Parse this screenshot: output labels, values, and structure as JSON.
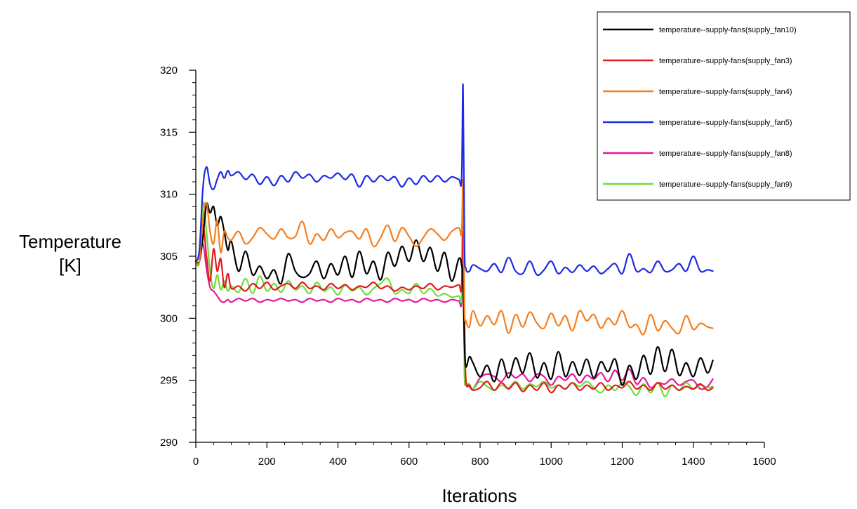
{
  "chart_data": {
    "type": "line",
    "xlabel": "Iterations",
    "ylabel_lines": [
      "Temperature",
      "[K]"
    ],
    "xlim": [
      0,
      1600
    ],
    "ylim": [
      290,
      320
    ],
    "x_ticks": [
      0,
      200,
      400,
      600,
      800,
      1000,
      1200,
      1400,
      1600
    ],
    "y_ticks": [
      290,
      295,
      300,
      305,
      310,
      315,
      320
    ],
    "grid": false,
    "legend_position": "top-right",
    "series": [
      {
        "name": "temperature--supply-fans(supply_fan10)",
        "color": "#000000",
        "x": [
          0,
          10,
          20,
          30,
          40,
          50,
          60,
          70,
          80,
          90,
          100,
          120,
          140,
          160,
          180,
          200,
          220,
          240,
          260,
          280,
          300,
          320,
          340,
          360,
          380,
          400,
          420,
          440,
          460,
          480,
          500,
          520,
          540,
          560,
          580,
          600,
          620,
          640,
          660,
          680,
          700,
          720,
          740,
          748,
          752,
          756,
          760,
          770,
          780,
          800,
          820,
          840,
          860,
          880,
          900,
          920,
          940,
          960,
          980,
          1000,
          1020,
          1040,
          1060,
          1080,
          1100,
          1120,
          1140,
          1160,
          1180,
          1200,
          1220,
          1240,
          1260,
          1280,
          1300,
          1320,
          1340,
          1360,
          1380,
          1400,
          1420,
          1440,
          1455
        ],
        "y": [
          304.6,
          304.6,
          306.5,
          309.2,
          308.5,
          309.0,
          307.5,
          308.2,
          307.0,
          305.5,
          306.2,
          303.8,
          305.4,
          303.5,
          304.2,
          303.2,
          303.9,
          302.8,
          305.2,
          303.8,
          303.3,
          303.6,
          304.6,
          303.2,
          304.4,
          303.5,
          305.0,
          303.3,
          305.4,
          303.6,
          304.6,
          303.1,
          305.3,
          304.2,
          305.8,
          304.6,
          306.3,
          304.6,
          305.7,
          303.8,
          305.3,
          303.0,
          304.8,
          304.3,
          303.0,
          298.0,
          296.1,
          296.9,
          296.4,
          295.3,
          296.2,
          294.9,
          296.7,
          295.2,
          296.8,
          295.6,
          297.2,
          295.2,
          296.4,
          295.1,
          297.3,
          295.3,
          296.5,
          295.4,
          296.7,
          295.2,
          296.5,
          295.7,
          296.7,
          294.6,
          296.2,
          295.1,
          297.0,
          295.5,
          297.7,
          295.7,
          297.5,
          295.4,
          296.4,
          295.3,
          296.8,
          295.6,
          296.6
        ]
      },
      {
        "name": "temperature--supply-fans(supply_fan3)",
        "color": "#e41a1c",
        "x": [
          0,
          10,
          20,
          30,
          40,
          50,
          60,
          70,
          80,
          90,
          100,
          120,
          140,
          160,
          180,
          200,
          220,
          240,
          260,
          280,
          300,
          320,
          340,
          360,
          380,
          400,
          420,
          440,
          460,
          480,
          500,
          520,
          540,
          560,
          580,
          600,
          620,
          640,
          660,
          680,
          700,
          720,
          740,
          748,
          752,
          756,
          760,
          770,
          780,
          800,
          820,
          840,
          860,
          880,
          900,
          920,
          940,
          960,
          980,
          1000,
          1020,
          1040,
          1060,
          1080,
          1100,
          1120,
          1140,
          1160,
          1180,
          1200,
          1220,
          1240,
          1260,
          1280,
          1300,
          1320,
          1340,
          1360,
          1380,
          1400,
          1420,
          1440,
          1455
        ],
        "y": [
          304.6,
          304.6,
          307.5,
          305.0,
          303.0,
          305.6,
          303.8,
          304.8,
          302.5,
          303.6,
          302.4,
          302.6,
          302.2,
          302.8,
          302.4,
          302.9,
          302.3,
          302.6,
          302.8,
          302.4,
          302.9,
          302.4,
          302.6,
          302.3,
          302.8,
          302.4,
          302.7,
          302.3,
          302.6,
          302.5,
          302.9,
          302.4,
          302.6,
          302.2,
          302.5,
          302.3,
          302.6,
          302.4,
          302.8,
          302.3,
          302.6,
          302.5,
          302.7,
          302.6,
          309.0,
          300.0,
          295.0,
          294.6,
          294.2,
          294.4,
          294.9,
          294.2,
          294.8,
          294.3,
          294.8,
          294.1,
          294.6,
          294.2,
          294.8,
          294.0,
          294.6,
          294.3,
          294.8,
          294.2,
          294.6,
          294.3,
          294.8,
          294.2,
          294.6,
          294.4,
          294.9,
          294.3,
          294.6,
          294.2,
          294.8,
          294.3,
          294.6,
          294.2,
          294.5,
          294.3,
          294.7,
          294.2,
          294.4
        ]
      },
      {
        "name": "temperature--supply-fans(supply_fan4)",
        "color": "#f47f20",
        "x": [
          0,
          10,
          20,
          30,
          40,
          50,
          60,
          70,
          80,
          90,
          100,
          120,
          140,
          160,
          180,
          200,
          220,
          240,
          260,
          280,
          300,
          320,
          340,
          360,
          380,
          400,
          420,
          440,
          460,
          480,
          500,
          520,
          540,
          560,
          580,
          600,
          620,
          640,
          660,
          680,
          700,
          720,
          740,
          748,
          752,
          756,
          760,
          770,
          780,
          800,
          820,
          840,
          860,
          880,
          900,
          920,
          940,
          960,
          980,
          1000,
          1020,
          1040,
          1060,
          1080,
          1100,
          1120,
          1140,
          1160,
          1180,
          1200,
          1220,
          1240,
          1260,
          1280,
          1300,
          1320,
          1340,
          1360,
          1380,
          1400,
          1420,
          1440,
          1455
        ],
        "y": [
          304.6,
          304.6,
          308.0,
          309.3,
          307.0,
          306.0,
          307.9,
          305.3,
          307.0,
          306.5,
          306.3,
          307.0,
          306.0,
          306.5,
          307.3,
          306.8,
          306.4,
          307.2,
          306.5,
          306.6,
          307.8,
          306.0,
          306.8,
          306.3,
          307.2,
          306.5,
          306.9,
          307.0,
          306.4,
          307.2,
          305.8,
          306.5,
          307.5,
          306.2,
          307.3,
          306.6,
          305.8,
          306.5,
          307.2,
          306.8,
          306.3,
          307.0,
          307.3,
          306.9,
          311.0,
          301.0,
          299.8,
          299.3,
          300.6,
          299.4,
          300.2,
          299.5,
          300.6,
          298.8,
          300.3,
          299.3,
          300.5,
          299.6,
          299.2,
          300.4,
          299.4,
          300.2,
          299.0,
          300.6,
          299.8,
          300.3,
          299.2,
          300.0,
          299.5,
          300.6,
          299.3,
          299.5,
          298.7,
          300.3,
          299.0,
          299.8,
          299.2,
          298.8,
          300.2,
          299.1,
          299.6,
          299.3,
          299.2
        ]
      },
      {
        "name": "temperature--supply-fans(supply_fan5)",
        "color": "#1c2ce0",
        "x": [
          0,
          10,
          20,
          30,
          40,
          50,
          60,
          70,
          80,
          90,
          100,
          120,
          140,
          160,
          180,
          200,
          220,
          240,
          260,
          280,
          300,
          320,
          340,
          360,
          380,
          400,
          420,
          440,
          460,
          480,
          500,
          520,
          540,
          560,
          580,
          600,
          620,
          640,
          660,
          680,
          700,
          720,
          740,
          748,
          752,
          756,
          760,
          770,
          780,
          800,
          820,
          840,
          860,
          880,
          900,
          920,
          940,
          960,
          980,
          1000,
          1020,
          1040,
          1060,
          1080,
          1100,
          1120,
          1140,
          1160,
          1180,
          1200,
          1220,
          1240,
          1260,
          1280,
          1300,
          1320,
          1340,
          1360,
          1380,
          1400,
          1420,
          1440,
          1455
        ],
        "y": [
          304.6,
          305.5,
          310.5,
          312.2,
          310.8,
          310.4,
          311.2,
          311.8,
          311.3,
          311.9,
          311.5,
          311.8,
          311.2,
          311.6,
          310.8,
          311.4,
          310.7,
          311.5,
          311.0,
          311.8,
          311.3,
          311.6,
          311.0,
          311.5,
          311.3,
          311.7,
          311.2,
          311.6,
          310.6,
          311.5,
          311.0,
          311.5,
          311.1,
          311.4,
          310.6,
          311.3,
          310.8,
          311.5,
          311.0,
          311.5,
          311.0,
          311.4,
          311.2,
          311.3,
          318.8,
          306.0,
          304.0,
          303.8,
          304.3,
          304.0,
          303.8,
          304.4,
          303.7,
          304.9,
          303.8,
          303.6,
          304.6,
          303.5,
          303.9,
          304.6,
          303.6,
          304.1,
          303.7,
          304.3,
          303.8,
          304.2,
          303.6,
          304.0,
          304.4,
          303.6,
          305.2,
          303.8,
          304.0,
          303.7,
          304.6,
          303.8,
          303.9,
          304.4,
          303.8,
          305.0,
          303.8,
          303.9,
          303.8
        ]
      },
      {
        "name": "temperature--supply-fans(supply_fan8)",
        "color": "#e6199b",
        "x": [
          0,
          10,
          20,
          30,
          40,
          50,
          60,
          70,
          80,
          90,
          100,
          120,
          140,
          160,
          180,
          200,
          220,
          240,
          260,
          280,
          300,
          320,
          340,
          360,
          380,
          400,
          420,
          440,
          460,
          480,
          500,
          520,
          540,
          560,
          580,
          600,
          620,
          640,
          660,
          680,
          700,
          720,
          740,
          748,
          752,
          756,
          760,
          770,
          780,
          800,
          820,
          840,
          860,
          880,
          900,
          920,
          940,
          960,
          980,
          1000,
          1020,
          1040,
          1060,
          1080,
          1100,
          1120,
          1140,
          1160,
          1180,
          1200,
          1220,
          1240,
          1260,
          1280,
          1300,
          1320,
          1340,
          1360,
          1380,
          1400,
          1420,
          1440,
          1455
        ],
        "y": [
          304.6,
          304.6,
          306.0,
          304.0,
          302.5,
          302.2,
          301.8,
          301.4,
          301.3,
          301.5,
          301.3,
          301.6,
          301.4,
          301.6,
          301.3,
          301.5,
          301.4,
          301.6,
          301.4,
          301.5,
          301.3,
          301.6,
          301.4,
          301.5,
          301.3,
          301.6,
          301.4,
          301.5,
          301.3,
          301.6,
          301.4,
          301.5,
          301.3,
          301.6,
          301.4,
          301.5,
          301.3,
          301.6,
          301.4,
          301.5,
          301.3,
          301.5,
          301.4,
          301.5,
          308.0,
          296.0,
          294.8,
          294.5,
          294.3,
          295.2,
          295.5,
          295.3,
          294.9,
          295.6,
          295.2,
          295.5,
          294.9,
          295.5,
          295.3,
          294.6,
          295.3,
          295.0,
          295.5,
          294.8,
          295.4,
          295.1,
          295.6,
          294.9,
          295.8,
          295.0,
          295.9,
          294.7,
          295.2,
          294.4,
          294.8,
          294.7,
          295.1,
          294.6,
          294.9,
          295.0,
          294.3,
          294.5,
          295.1
        ]
      },
      {
        "name": "temperature--supply-fans(supply_fan9)",
        "color": "#6bdf3a",
        "x": [
          0,
          10,
          20,
          30,
          40,
          50,
          60,
          70,
          80,
          90,
          100,
          120,
          140,
          160,
          180,
          200,
          220,
          240,
          260,
          280,
          300,
          320,
          340,
          360,
          380,
          400,
          420,
          440,
          460,
          480,
          500,
          520,
          540,
          560,
          580,
          600,
          620,
          640,
          660,
          680,
          700,
          720,
          740,
          748,
          752,
          756,
          760,
          770,
          780,
          800,
          820,
          840,
          860,
          880,
          900,
          920,
          940,
          960,
          980,
          1000,
          1020,
          1040,
          1060,
          1080,
          1100,
          1120,
          1140,
          1160,
          1180,
          1200,
          1220,
          1240,
          1260,
          1280,
          1300,
          1320,
          1340,
          1360,
          1380,
          1400,
          1420,
          1440,
          1455
        ],
        "y": [
          304.6,
          304.6,
          309.3,
          307.0,
          303.8,
          302.4,
          303.5,
          302.3,
          303.0,
          302.2,
          302.6,
          302.1,
          303.2,
          302.0,
          303.4,
          302.2,
          302.8,
          302.1,
          303.0,
          302.3,
          302.6,
          302.0,
          302.9,
          302.2,
          302.5,
          301.9,
          302.7,
          302.2,
          302.5,
          301.9,
          302.4,
          302.8,
          303.2,
          302.0,
          302.3,
          302.0,
          302.8,
          302.0,
          302.4,
          301.8,
          302.0,
          301.7,
          301.8,
          301.7,
          307.5,
          296.0,
          294.8,
          294.7,
          294.3,
          294.9,
          294.5,
          294.2,
          294.6,
          294.4,
          294.9,
          294.3,
          294.7,
          294.5,
          294.9,
          294.4,
          294.6,
          294.3,
          294.8,
          294.5,
          294.9,
          294.4,
          294.0,
          294.6,
          294.2,
          294.8,
          294.5,
          293.8,
          294.7,
          294.0,
          294.8,
          293.7,
          294.6,
          294.2,
          294.8,
          294.3,
          294.6,
          294.4,
          294.5
        ]
      }
    ]
  }
}
